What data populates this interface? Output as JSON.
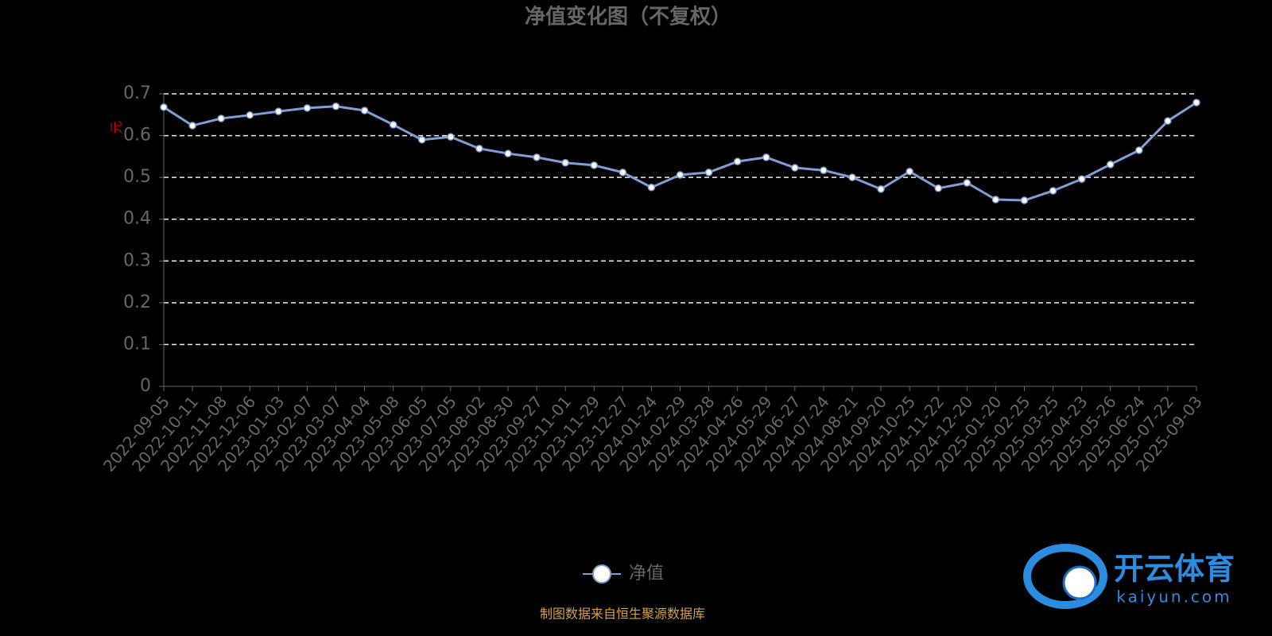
{
  "chart_data": {
    "type": "line",
    "title": "净值变化图（不复权）",
    "ylabel": "元",
    "categories": [
      "2022-09-05",
      "2022-10-11",
      "2022-11-08",
      "2022-12-06",
      "2023-01-03",
      "2023-02-07",
      "2023-03-07",
      "2023-04-04",
      "2023-05-08",
      "2023-06-05",
      "2023-07-05",
      "2023-08-02",
      "2023-08-30",
      "2023-09-27",
      "2023-11-01",
      "2023-11-29",
      "2023-12-27",
      "2024-01-24",
      "2024-02-29",
      "2024-03-28",
      "2024-04-26",
      "2024-05-29",
      "2024-06-27",
      "2024-07-24",
      "2024-08-21",
      "2024-09-20",
      "2024-10-25",
      "2024-11-22",
      "2024-12-20",
      "2025-01-20",
      "2025-02-25",
      "2025-03-25",
      "2025-04-23",
      "2025-05-26",
      "2025-06-24",
      "2025-07-22",
      "2025-09-03"
    ],
    "series": [
      {
        "name": "净值",
        "color": "#7f9fd4",
        "values": [
          0.668,
          0.624,
          0.641,
          0.649,
          0.658,
          0.666,
          0.67,
          0.66,
          0.626,
          0.59,
          0.597,
          0.569,
          0.557,
          0.548,
          0.535,
          0.529,
          0.512,
          0.476,
          0.506,
          0.512,
          0.538,
          0.548,
          0.523,
          0.517,
          0.5,
          0.472,
          0.514,
          0.474,
          0.487,
          0.447,
          0.445,
          0.468,
          0.496,
          0.531,
          0.565,
          0.635,
          0.679
        ]
      }
    ],
    "ylim": [
      0,
      0.7
    ],
    "yticks": [
      0,
      0.1,
      0.2,
      0.3,
      0.4,
      0.5,
      0.6,
      0.7
    ],
    "grid": true,
    "legend": "bottom"
  },
  "source": "制图数据来自恒生聚源数据库",
  "watermark": {
    "brand": "开云体育",
    "site": "kaiyun.com"
  }
}
